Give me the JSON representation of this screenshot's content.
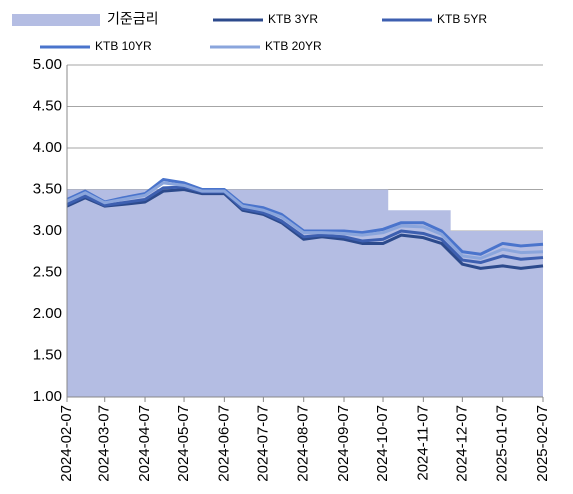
{
  "chart_data": {
    "type": "line",
    "x": [
      "2024-02-07",
      "2024-02-21",
      "2024-03-07",
      "2024-03-21",
      "2024-04-07",
      "2024-04-21",
      "2024-05-07",
      "2024-05-21",
      "2024-06-07",
      "2024-06-21",
      "2024-07-07",
      "2024-07-21",
      "2024-08-07",
      "2024-08-21",
      "2024-09-07",
      "2024-09-21",
      "2024-10-07",
      "2024-10-21",
      "2024-11-07",
      "2024-11-21",
      "2024-12-07",
      "2024-12-21",
      "2025-01-07",
      "2025-01-21",
      "2025-02-07"
    ],
    "area": {
      "name": "기준금리",
      "color": "#b4bde3",
      "step": true,
      "x": [
        "2024-02-07",
        "2024-10-11",
        "2024-11-28",
        "2025-02-07"
      ],
      "values": [
        3.5,
        3.25,
        3.0,
        3.0
      ]
    },
    "series": [
      {
        "name": "KTB 3YR",
        "color": "#2c4a8c",
        "values": [
          3.3,
          3.4,
          3.3,
          3.32,
          3.35,
          3.48,
          3.5,
          3.45,
          3.45,
          3.25,
          3.2,
          3.1,
          2.9,
          2.93,
          2.9,
          2.85,
          2.85,
          2.95,
          2.92,
          2.85,
          2.6,
          2.55,
          2.58,
          2.55,
          2.58
        ]
      },
      {
        "name": "KTB 5YR",
        "color": "#3d5fb0",
        "values": [
          3.32,
          3.42,
          3.31,
          3.34,
          3.38,
          3.52,
          3.53,
          3.47,
          3.47,
          3.27,
          3.22,
          3.12,
          2.93,
          2.95,
          2.93,
          2.88,
          2.9,
          3.0,
          2.97,
          2.9,
          2.65,
          2.62,
          2.7,
          2.66,
          2.68
        ]
      },
      {
        "name": "KTB 10YR",
        "color": "#4a74cc",
        "values": [
          3.38,
          3.48,
          3.35,
          3.4,
          3.45,
          3.62,
          3.58,
          3.5,
          3.5,
          3.32,
          3.28,
          3.2,
          3.0,
          3.0,
          3.0,
          2.98,
          3.02,
          3.1,
          3.1,
          3.0,
          2.75,
          2.72,
          2.85,
          2.82,
          2.84
        ]
      },
      {
        "name": "KTB 20YR",
        "color": "#8aa5dc",
        "values": [
          3.36,
          3.46,
          3.34,
          3.38,
          3.43,
          3.58,
          3.55,
          3.48,
          3.48,
          3.3,
          3.25,
          3.17,
          2.98,
          2.98,
          2.97,
          2.95,
          2.98,
          3.06,
          3.05,
          2.96,
          2.7,
          2.67,
          2.78,
          2.74,
          2.75
        ]
      }
    ],
    "ylim": [
      1,
      5
    ],
    "yticks": [
      {
        "value": 1,
        "label": "1.00"
      },
      {
        "value": 1.5,
        "label": "1.50"
      },
      {
        "value": 2,
        "label": "2.00"
      },
      {
        "value": 2.5,
        "label": "2.50"
      },
      {
        "value": 3,
        "label": "3.00"
      },
      {
        "value": 3.5,
        "label": "3.50"
      },
      {
        "value": 4,
        "label": "4.00"
      },
      {
        "value": 4.5,
        "label": "4.50"
      },
      {
        "value": 5,
        "label": "5.00"
      }
    ],
    "xlim": [
      "2024-02-07",
      "2025-02-07"
    ],
    "xticks": [
      "2024-02-07",
      "2024-03-07",
      "2024-04-07",
      "2024-05-07",
      "2024-06-07",
      "2024-07-07",
      "2024-08-07",
      "2024-09-07",
      "2024-10-07",
      "2024-11-07",
      "2024-12-07",
      "2025-01-07",
      "2025-02-07"
    ],
    "grid": true
  }
}
